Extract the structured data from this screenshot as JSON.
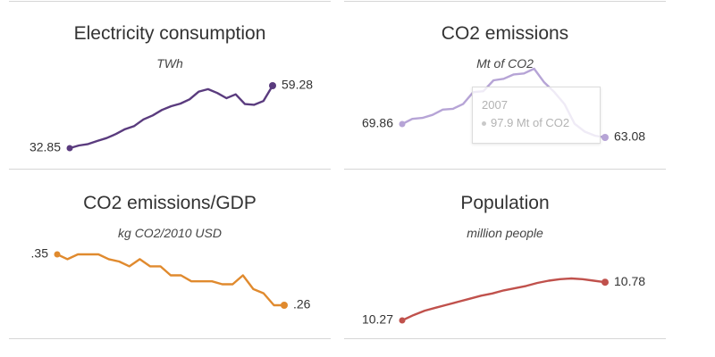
{
  "chart_data": [
    {
      "type": "line",
      "title": "Electricity consumption",
      "unit": "TWh",
      "color": "#5a3b7e",
      "start_label": "32.85",
      "end_label": "59.28",
      "values": [
        32.85,
        34.0,
        34.6,
        35.9,
        37.1,
        38.8,
        40.9,
        42.2,
        45.0,
        46.7,
        49.0,
        50.6,
        51.7,
        53.5,
        56.8,
        57.8,
        56.2,
        54.0,
        55.6,
        51.5,
        51.2,
        52.8,
        59.28
      ]
    },
    {
      "type": "line",
      "title": "CO2 emissions",
      "unit": "Mt of CO2",
      "color": "#b6a4d6",
      "start_label": "69.86",
      "end_label": "63.08",
      "values": [
        69.86,
        72.5,
        73.0,
        74.5,
        77.2,
        77.6,
        80.0,
        86.0,
        86.5,
        92.0,
        92.8,
        95.0,
        95.5,
        97.9,
        91.0,
        86.0,
        80.0,
        70.0,
        66.0,
        64.0,
        63.08
      ],
      "tooltip": {
        "label": "2007",
        "value_text": "97.9 Mt of CO2"
      }
    },
    {
      "type": "line",
      "title": "CO2 emissions/GDP",
      "unit": "kg CO2/2010 USD",
      "color": "#e08a2e",
      "start_label": ".35",
      "end_label": ".26",
      "values": [
        0.35,
        0.342,
        0.35,
        0.35,
        0.35,
        0.342,
        0.338,
        0.33,
        0.342,
        0.33,
        0.33,
        0.315,
        0.315,
        0.305,
        0.305,
        0.305,
        0.3,
        0.3,
        0.315,
        0.292,
        0.285,
        0.265,
        0.265
      ]
    },
    {
      "type": "line",
      "title": "Population",
      "unit": "million people",
      "color": "#c0514c",
      "start_label": "10.27",
      "end_label": "10.78",
      "values": [
        10.27,
        10.34,
        10.4,
        10.44,
        10.48,
        10.52,
        10.56,
        10.6,
        10.63,
        10.67,
        10.7,
        10.73,
        10.77,
        10.8,
        10.82,
        10.83,
        10.82,
        10.8,
        10.78
      ]
    }
  ]
}
